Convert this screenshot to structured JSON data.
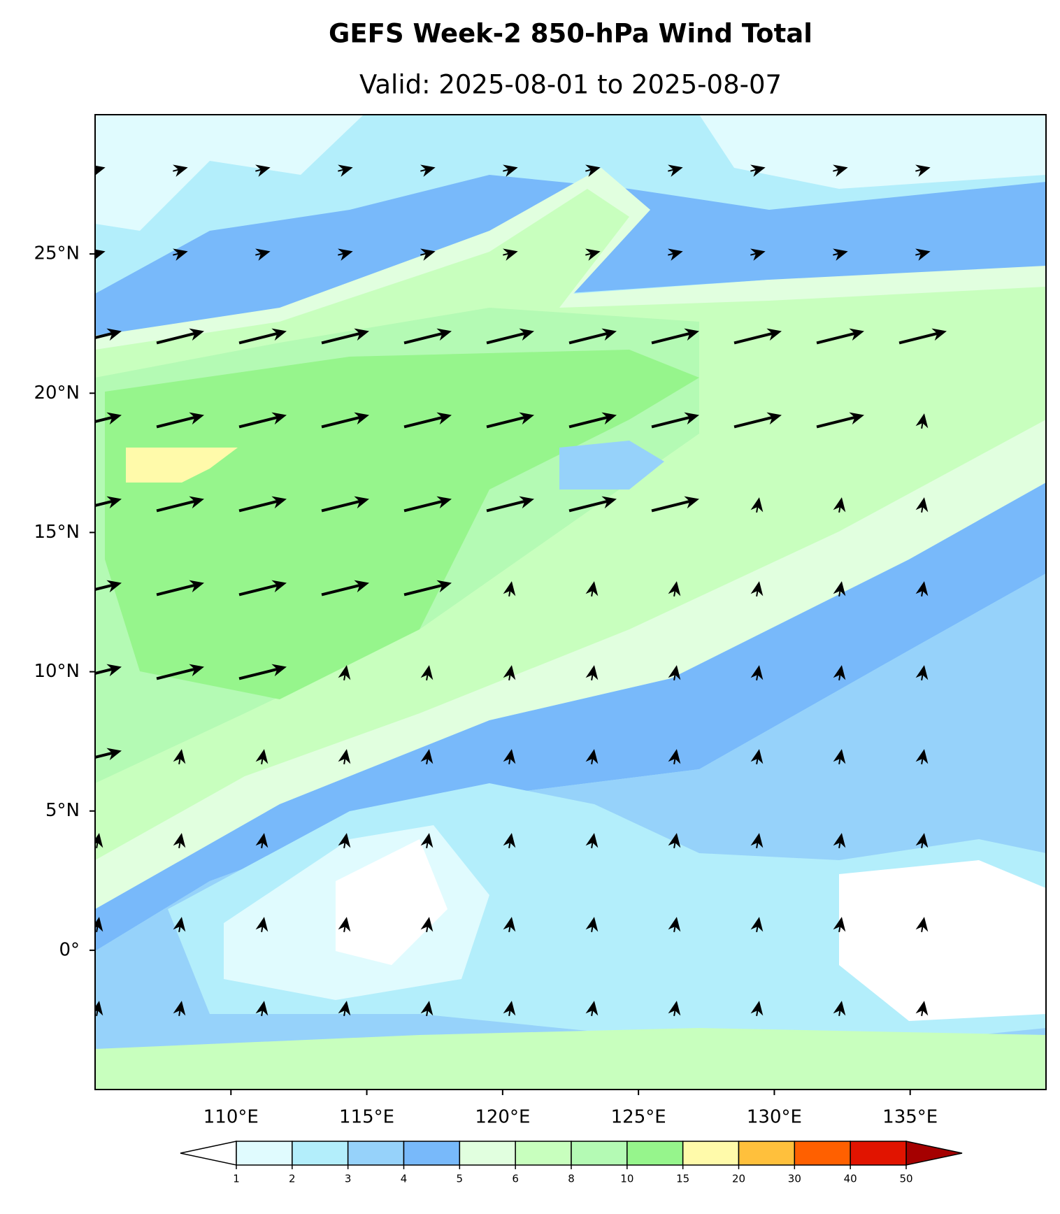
{
  "chart_data": {
    "type": "map",
    "title": "GEFS Week-2 850-hPa Wind Total",
    "subtitle": "Valid: 2025-08-01 to 2025-08-07",
    "xlim": [
      105,
      140
    ],
    "ylim": [
      -5,
      30
    ],
    "xticks": [
      {
        "value": 110,
        "label": "110°E"
      },
      {
        "value": 115,
        "label": "115°E"
      },
      {
        "value": 120,
        "label": "120°E"
      },
      {
        "value": 125,
        "label": "125°E"
      },
      {
        "value": 130,
        "label": "130°E"
      },
      {
        "value": 135,
        "label": "135°E"
      }
    ],
    "yticks": [
      {
        "value": 0,
        "label": "0°"
      },
      {
        "value": 5,
        "label": "5°N"
      },
      {
        "value": 10,
        "label": "10°N"
      },
      {
        "value": 15,
        "label": "15°N"
      },
      {
        "value": 20,
        "label": "20°N"
      },
      {
        "value": 25,
        "label": "25°N"
      }
    ],
    "colorbar": {
      "levels": [
        1,
        2,
        3,
        4,
        5,
        6,
        8,
        10,
        15,
        20,
        30,
        40,
        50
      ],
      "colors": [
        "#e0fbfe",
        "#b3eefb",
        "#96d2fa",
        "#78b9fa",
        "#e1ffdf",
        "#c8ffbe",
        "#b4fab4",
        "#96f58c",
        "#fffaaa",
        "#ffc03c",
        "#ff6000",
        "#e11400"
      ],
      "under_color": "#ffffff",
      "over_color": "#a50000"
    }
  }
}
